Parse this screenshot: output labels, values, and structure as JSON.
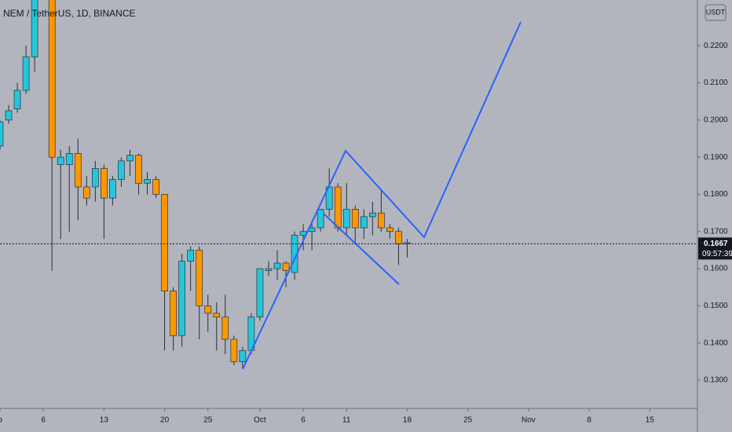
{
  "chart_data": {
    "type": "candlestick",
    "title": "NEM / TetherUS, 1D, BINANCE",
    "currency": "USDT",
    "up_color": "#26c6da",
    "down_color": "#ff9800",
    "xlim": [
      0,
      80.5
    ],
    "ylim": [
      0.1224,
      0.2323
    ],
    "xticks": [
      {
        "value": 0,
        "label": "p"
      },
      {
        "value": 5,
        "label": "6"
      },
      {
        "value": 12,
        "label": "13"
      },
      {
        "value": 19,
        "label": "20"
      },
      {
        "value": 24,
        "label": "25"
      },
      {
        "value": 30,
        "label": "Oct"
      },
      {
        "value": 35,
        "label": "6"
      },
      {
        "value": 40,
        "label": "11"
      },
      {
        "value": 47,
        "label": "18"
      },
      {
        "value": 54,
        "label": "25"
      },
      {
        "value": 61,
        "label": "Nov"
      },
      {
        "value": 68,
        "label": "8"
      },
      {
        "value": 75,
        "label": "15"
      }
    ],
    "yticks": [
      {
        "value": 0.13,
        "label": "0.1300"
      },
      {
        "value": 0.14,
        "label": "0.1400"
      },
      {
        "value": 0.15,
        "label": "0.1500"
      },
      {
        "value": 0.16,
        "label": "0.1600"
      },
      {
        "value": 0.17,
        "label": "0.1700"
      },
      {
        "value": 0.18,
        "label": "0.1800"
      },
      {
        "value": 0.19,
        "label": "0.1900"
      },
      {
        "value": 0.2,
        "label": "0.2000"
      },
      {
        "value": 0.21,
        "label": "0.2100"
      },
      {
        "value": 0.22,
        "label": "0.2200"
      }
    ],
    "x": [
      0,
      1,
      2,
      3,
      4,
      6,
      7,
      8,
      9,
      10,
      11,
      12,
      13,
      14,
      15,
      16,
      17,
      18,
      19,
      20,
      21,
      22,
      23,
      24,
      25,
      26,
      27,
      28,
      29,
      30,
      31,
      32,
      33,
      34,
      35,
      36,
      37,
      38,
      39,
      40,
      41,
      42,
      43,
      44,
      45,
      46,
      47
    ],
    "open": [
      0.193,
      0.2,
      0.203,
      0.208,
      0.217,
      0.233,
      0.188,
      0.188,
      0.191,
      0.182,
      0.182,
      0.187,
      0.179,
      0.184,
      0.189,
      0.1905,
      0.183,
      0.184,
      0.18,
      0.154,
      0.142,
      0.162,
      0.165,
      0.15,
      0.148,
      0.147,
      0.141,
      0.135,
      0.138,
      0.147,
      0.1595,
      0.16,
      0.1615,
      0.159,
      0.169,
      0.17,
      0.171,
      0.176,
      0.182,
      0.171,
      0.176,
      0.171,
      0.174,
      0.175,
      0.171,
      0.17,
      0.1667
    ],
    "high": [
      0.2,
      0.204,
      0.21,
      0.22,
      0.234,
      0.234,
      0.192,
      0.193,
      0.195,
      0.185,
      0.189,
      0.188,
      0.185,
      0.19,
      0.192,
      0.191,
      0.186,
      0.185,
      0.18,
      0.155,
      0.164,
      0.166,
      0.166,
      0.153,
      0.151,
      0.153,
      0.142,
      0.139,
      0.148,
      0.16,
      0.162,
      0.165,
      0.162,
      0.17,
      0.172,
      0.172,
      0.176,
      0.187,
      0.183,
      0.183,
      0.177,
      0.176,
      0.178,
      0.181,
      0.172,
      0.171,
      0.168
    ],
    "low": [
      0.192,
      0.199,
      0.202,
      0.207,
      0.213,
      0.1594,
      0.168,
      0.17,
      0.173,
      0.177,
      0.178,
      0.168,
      0.177,
      0.182,
      0.185,
      0.18,
      0.18,
      0.179,
      0.138,
      0.138,
      0.139,
      0.154,
      0.141,
      0.143,
      0.138,
      0.137,
      0.134,
      0.133,
      0.137,
      0.146,
      0.158,
      0.157,
      0.155,
      0.157,
      0.165,
      0.165,
      0.17,
      0.174,
      0.17,
      0.169,
      0.167,
      0.168,
      0.169,
      0.17,
      0.168,
      0.161,
      0.163
    ],
    "close": [
      0.1995,
      0.2025,
      0.208,
      0.217,
      0.233,
      0.19,
      0.19,
      0.191,
      0.182,
      0.179,
      0.187,
      0.179,
      0.184,
      0.189,
      0.1905,
      0.183,
      0.184,
      0.18,
      0.154,
      0.142,
      0.162,
      0.165,
      0.15,
      0.148,
      0.147,
      0.141,
      0.135,
      0.138,
      0.147,
      0.16,
      0.16,
      0.1615,
      0.1595,
      0.169,
      0.17,
      0.171,
      0.176,
      0.182,
      0.171,
      0.176,
      0.171,
      0.174,
      0.175,
      0.171,
      0.17,
      0.1667,
      0.167
    ],
    "last_price": 0.1667,
    "countdown": "09:57:39"
  }
}
